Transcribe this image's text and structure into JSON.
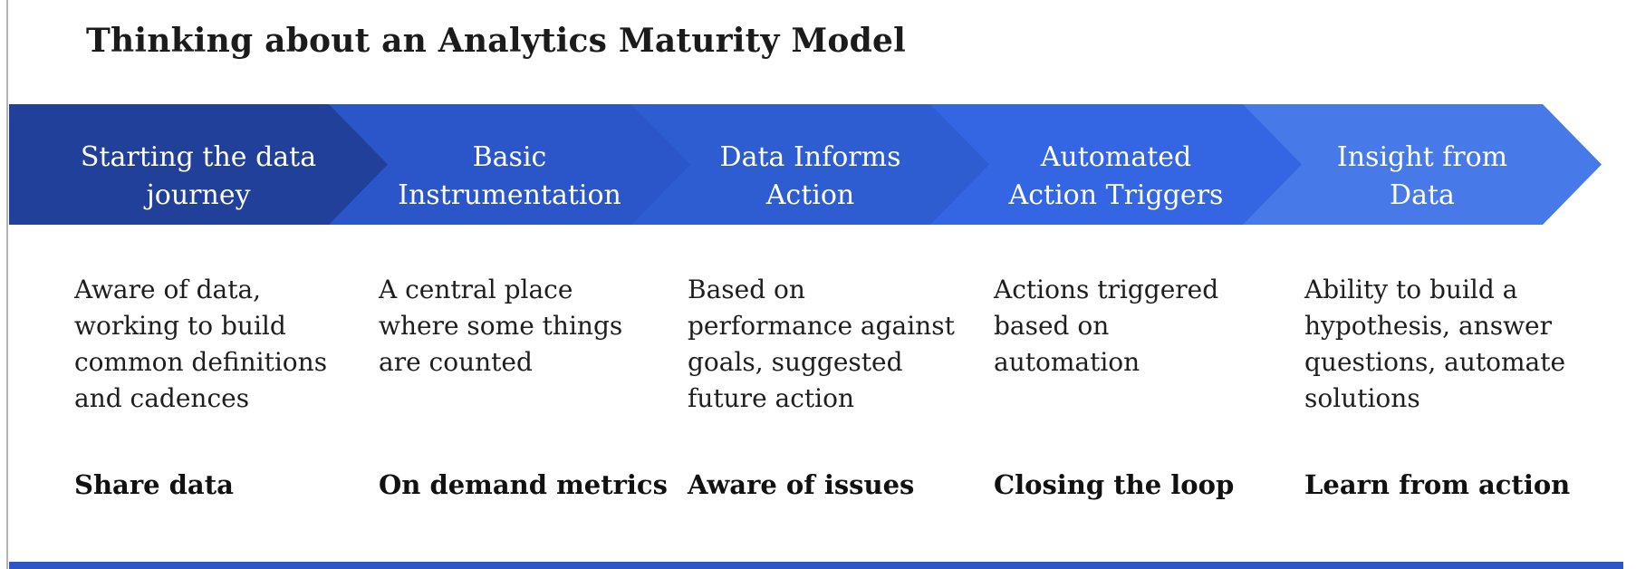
{
  "title": "Thinking about an Analytics Maturity Model",
  "colors": {
    "stage1": "#21409a",
    "stage2": "#2b56c9",
    "stage3": "#2e5dd1",
    "stage4": "#3466e3",
    "stage5": "#4879e8",
    "bottom_strip": "#2c55c8",
    "label_text": "#ffffff",
    "body_text": "#1e1e1e"
  },
  "stages": [
    {
      "label": [
        "Starting the data",
        "journey"
      ],
      "color": "#21409a",
      "description": [
        "Aware of data,",
        "working to build",
        "common definitions",
        "and cadences"
      ],
      "summary": "Share data"
    },
    {
      "label": [
        "Basic",
        "Instrumentation"
      ],
      "color": "#2b56c9",
      "description": [
        "A central place",
        "where some things",
        "are counted"
      ],
      "summary": "On demand metrics"
    },
    {
      "label": [
        "Data Informs",
        "Action"
      ],
      "color": "#2e5dd1",
      "description": [
        "Based on",
        "performance against",
        "goals, suggested",
        "future action"
      ],
      "summary": "Aware of issues"
    },
    {
      "label": [
        "Automated",
        "Action Triggers"
      ],
      "color": "#3466e3",
      "description": [
        "Actions triggered",
        "based on",
        "automation"
      ],
      "summary": "Closing the loop"
    },
    {
      "label": [
        "Insight from",
        "Data"
      ],
      "color": "#4879e8",
      "description": [
        "Ability to build a",
        "hypothesis, answer",
        "questions, automate",
        "solutions"
      ],
      "summary": "Learn from action"
    }
  ]
}
